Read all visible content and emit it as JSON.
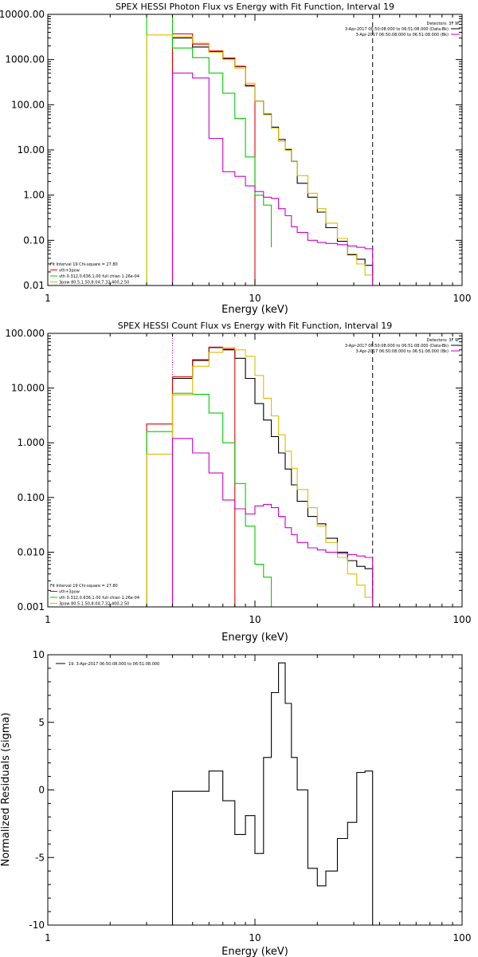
{
  "chart_data": [
    {
      "type": "line",
      "title": "SPEX HESSI Photon Flux vs Energy with Fit Function, Interval 19",
      "xlabel": "Energy (keV)",
      "ylabel": "",
      "xscale": "log",
      "yscale": "log",
      "xlim": [
        1,
        100
      ],
      "ylim": [
        0.01,
        10000
      ],
      "xticks": [
        "1",
        "10",
        "100"
      ],
      "yticks": [
        "0.01",
        "0.10",
        "1.00",
        "10.00",
        "100.00",
        "1000.00",
        "10000.00"
      ],
      "detectors_label": "Detectors: 3F 9F",
      "time_legend": [
        {
          "text": "3-Apr-2017 06:50:08.000 to 06:51:08.000 (Data-Bk)",
          "color": "#000000"
        },
        {
          "text": "3-Apr-2017 06:50:08.000 to 06:51:08.000 (Bk)",
          "color": "#cc00cc"
        }
      ],
      "fit_legend": [
        {
          "text": "Fit Interval 19   Chi-square = 27.80",
          "color": "#000000"
        },
        {
          "text": "vth+3pow",
          "color": "#e00000"
        },
        {
          "text": "vth 0.312,0.636,1.00  full chian 1.26e-04",
          "color": "#00cc00"
        },
        {
          "text": "3pow 80.5,1.50,8.04,7.32,400,2.50",
          "color": "#ddbb00"
        }
      ],
      "vlines": [
        {
          "x": 4.0,
          "style": "dotted",
          "color": "#cc00cc"
        },
        {
          "x": 37.0,
          "style": "dashed",
          "color": "#000000"
        }
      ],
      "series": [
        {
          "color": "#000000",
          "steps": {
            "edges": [
              4.0,
              5.0,
              6.0,
              7.0,
              8.0,
              9.0,
              10.0,
              11.0,
              12.0,
              13.0,
              14.0,
              15.0,
              16.0,
              18.0,
              20.0,
              22.0,
              25.0,
              28.0,
              31.0,
              34.0,
              37.0
            ],
            "values": [
              3000,
              1900,
              1480,
              1050,
              700,
              260,
              120,
              62,
              32,
              17,
              10.3,
              5.6,
              1.83,
              0.9,
              0.42,
              0.19,
              0.095,
              0.048,
              0.038,
              0.028
            ]
          }
        },
        {
          "color": "#e00000",
          "steps": {
            "edges": [
              4.0,
              5.0,
              6.0,
              7.0,
              8.0,
              9.0,
              10.0
            ],
            "values": [
              3700,
              2200,
              1550,
              1080,
              710,
              270
            ]
          }
        },
        {
          "color": "#00cc00",
          "steps": {
            "edges": [
              3.0,
              4.0,
              5.0,
              6.0,
              7.0,
              8.0,
              9.0,
              10.0,
              11.0,
              12.0
            ],
            "values": [
              10000,
              1800,
              1100,
              500,
              180,
              50,
              7,
              1.0,
              0.6,
              0.07
            ]
          }
        },
        {
          "color": "#ddbb00",
          "steps": {
            "edges": [
              3.0,
              4.0,
              5.0,
              6.0,
              7.0,
              8.0,
              9.0,
              10.0,
              11.0,
              12.0,
              13.0,
              14.0,
              15.0,
              16.0,
              18.0,
              20.0,
              22.0,
              25.0,
              28.0,
              31.0,
              34.0,
              37.0
            ],
            "values": [
              3500,
              3200,
              2300,
              1450,
              1000,
              650,
              300,
              120,
              60,
              30,
              15.5,
              9.8,
              5.5,
              2.7,
              1.1,
              0.5,
              0.24,
              0.11,
              0.05,
              0.03,
              0.017
            ]
          }
        },
        {
          "color": "#cc00cc",
          "steps": {
            "edges": [
              4.0,
              5.0,
              6.0,
              7.0,
              8.0,
              9.0,
              10.0,
              11.0,
              12.0,
              13.0,
              14.0,
              15.0,
              16.0,
              18.0,
              20.0,
              22.0,
              25.0,
              28.0,
              31.0,
              34.0,
              37.0
            ],
            "values": [
              500,
              390,
              18,
              3.3,
              2.6,
              1.6,
              1.2,
              0.9,
              0.85,
              0.5,
              0.35,
              0.2,
              0.15,
              0.1,
              0.09,
              0.085,
              0.08,
              0.075,
              0.07,
              0.065
            ]
          }
        }
      ]
    },
    {
      "type": "line",
      "title": "SPEX HESSI Count Flux vs Energy with Fit Function, Interval 19",
      "xlabel": "Energy (keV)",
      "ylabel": "",
      "xscale": "log",
      "yscale": "log",
      "xlim": [
        1,
        100
      ],
      "ylim": [
        0.001,
        100
      ],
      "xticks": [
        "1",
        "10",
        "100"
      ],
      "yticks": [
        "0.001",
        "0.010",
        "0.100",
        "1.000",
        "10.000",
        "100.000"
      ],
      "detectors_label": "Detectors: 3F 9F",
      "time_legend": [
        {
          "text": "3-Apr-2017 06:50:08.000 to 06:51:08.000 (Data-Bk)",
          "color": "#000000"
        },
        {
          "text": "3-Apr-2017 06:50:08.000 to 06:51:08.000 (Bk)",
          "color": "#cc00cc"
        }
      ],
      "fit_legend": [
        {
          "text": "Fit Interval 19   Chi-square = 27.80",
          "color": "#000000"
        },
        {
          "text": "vth+3pow",
          "color": "#e00000"
        },
        {
          "text": "vth 0.312,0.636,1.00  full chian 1.26e-04",
          "color": "#00cc00"
        },
        {
          "text": "3pow 80.5,1.50,8.04,7.32,400,2.50",
          "color": "#ddbb00"
        }
      ],
      "vlines": [
        {
          "x": 4.0,
          "style": "dotted",
          "color": "#000000"
        },
        {
          "x": 4.0,
          "style": "dotted",
          "color": "#cc00cc"
        },
        {
          "x": 37.0,
          "style": "dashed",
          "color": "#000000"
        }
      ],
      "series": [
        {
          "color": "#000000",
          "steps": {
            "edges": [
              4.0,
              5.0,
              6.0,
              7.0,
              8.0,
              9.0,
              10.0,
              11.0,
              12.0,
              13.0,
              14.0,
              15.0,
              16.0,
              18.0,
              20.0,
              22.0,
              25.0,
              28.0,
              31.0,
              34.0,
              37.0
            ],
            "values": [
              15,
              32,
              55,
              50,
              35,
              15,
              5.2,
              2.6,
              1.3,
              0.65,
              0.33,
              0.17,
              0.085,
              0.045,
              0.033,
              0.018,
              0.01,
              0.007,
              0.0055,
              0.005
            ]
          }
        },
        {
          "color": "#e00000",
          "steps": {
            "edges": [
              3.0,
              4.0,
              5.0,
              6.0,
              7.0,
              8.0
            ],
            "values": [
              2.2,
              16,
              33,
              56,
              52
            ]
          }
        },
        {
          "color": "#00cc00",
          "steps": {
            "edges": [
              3.0,
              4.0,
              5.0,
              6.0,
              7.0,
              8.0,
              9.0,
              10.0,
              11.0,
              12.0
            ],
            "values": [
              1.6,
              8,
              7.7,
              3.5,
              1.0,
              0.18,
              0.03,
              0.006,
              0.0035,
              0.001
            ]
          }
        },
        {
          "color": "#ddbb00",
          "steps": {
            "edges": [
              3.0,
              4.0,
              5.0,
              6.0,
              7.0,
              8.0,
              9.0,
              10.0,
              11.0,
              12.0,
              13.0,
              14.0,
              15.0,
              16.0,
              18.0,
              20.0,
              22.0,
              25.0,
              28.0,
              31.0,
              34.0,
              37.0,
              40.0
            ],
            "values": [
              0.62,
              7.5,
              25,
              45,
              55,
              50,
              38,
              17,
              6.5,
              3.1,
              1.4,
              0.7,
              0.34,
              0.14,
              0.065,
              0.03,
              0.015,
              0.008,
              0.004,
              0.0025,
              0.0015,
              0.001
            ]
          }
        },
        {
          "color": "#cc00cc",
          "steps": {
            "edges": [
              4.0,
              5.0,
              6.0,
              7.0,
              8.0,
              9.0,
              10.0,
              11.0,
              12.0,
              13.0,
              14.0,
              15.0,
              16.0,
              18.0,
              20.0,
              22.0,
              25.0,
              28.0,
              31.0,
              34.0,
              37.0
            ],
            "values": [
              1.2,
              0.65,
              0.28,
              0.09,
              0.062,
              0.05,
              0.07,
              0.075,
              0.065,
              0.045,
              0.028,
              0.021,
              0.015,
              0.012,
              0.011,
              0.01,
              0.0095,
              0.009,
              0.0085,
              0.008
            ]
          }
        }
      ]
    },
    {
      "type": "line",
      "title": "",
      "xlabel": "Energy (keV)",
      "ylabel": "Normalized Residuals (sigma)",
      "xscale": "log",
      "yscale": "linear",
      "xlim": [
        1,
        100
      ],
      "ylim": [
        -10,
        10
      ],
      "xticks": [
        "1",
        "10",
        "100"
      ],
      "yticks": [
        "-10",
        "-5",
        "0",
        "5",
        "10"
      ],
      "legend": [
        {
          "text": "19.  3-Apr-2017 06:50:08.000 to 06:51:08.000",
          "color": "#000000"
        }
      ],
      "series": [
        {
          "color": "#000000",
          "steps": {
            "edges": [
              4.0,
              5.0,
              6.0,
              7.0,
              8.0,
              9.0,
              10.0,
              11.0,
              12.0,
              13.0,
              14.0,
              15.0,
              16.0,
              18.0,
              20.0,
              22.0,
              25.0,
              28.0,
              31.0,
              34.0,
              37.0
            ],
            "values": [
              -0.1,
              -0.1,
              1.4,
              -0.8,
              -3.3,
              -1.9,
              -4.7,
              2.4,
              7.2,
              9.4,
              6.4,
              2.4,
              0.0,
              -5.8,
              -7.1,
              -6.0,
              -3.6,
              -2.4,
              1.3,
              1.4
            ],
            "drop_to": -10
          }
        }
      ]
    }
  ]
}
